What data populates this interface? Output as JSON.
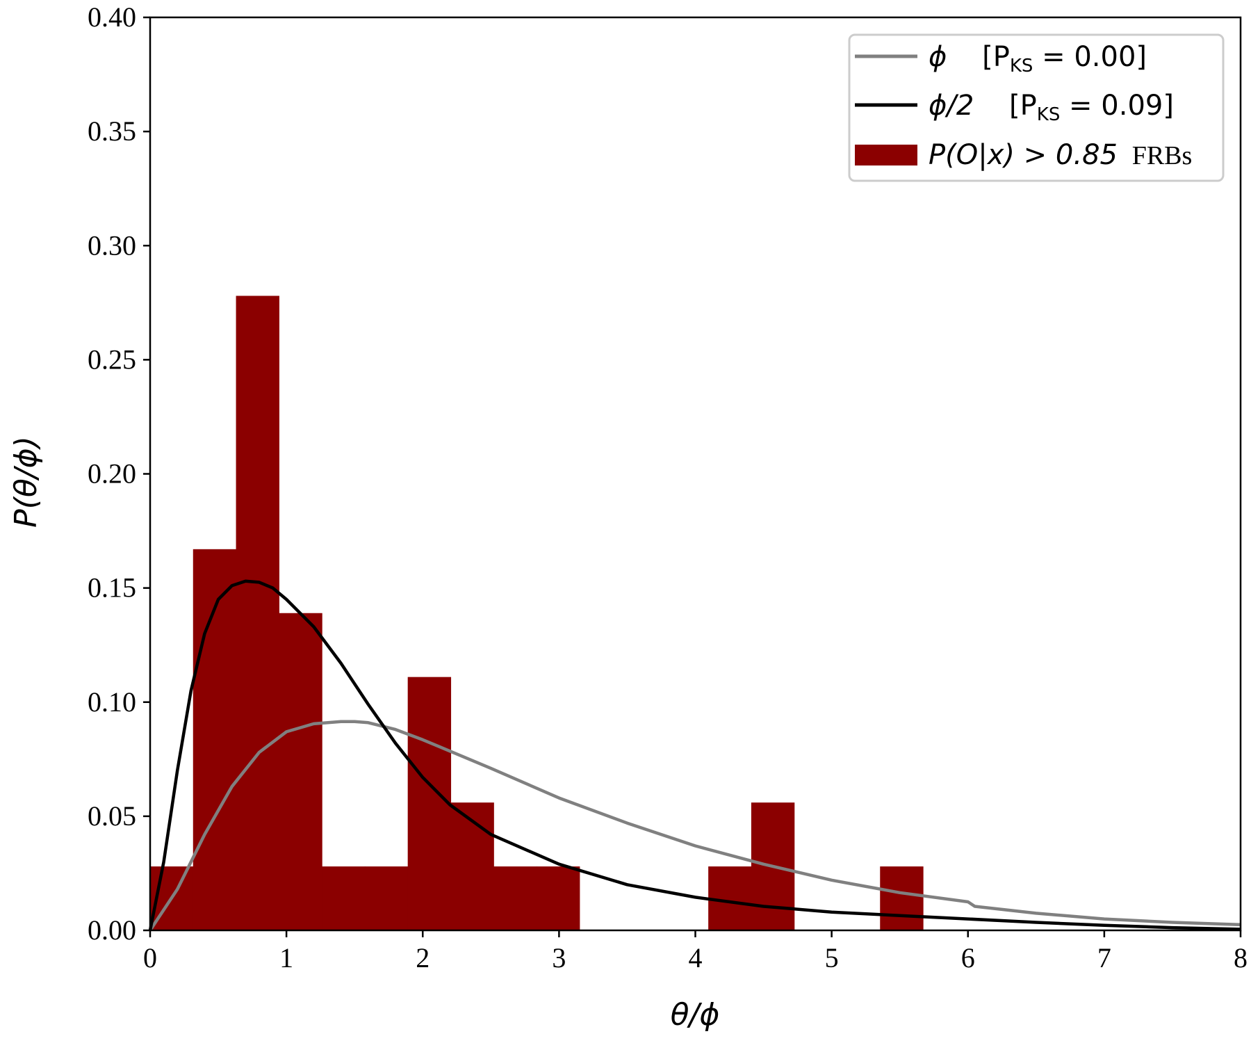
{
  "chart_data": {
    "type": "bar",
    "title": "",
    "xlabel": "θ/ϕ",
    "ylabel": "P(θ/ϕ)",
    "xlim": [
      0,
      8
    ],
    "ylim": [
      0,
      0.4
    ],
    "x_ticks": [
      "0",
      "1",
      "2",
      "3",
      "4",
      "5",
      "6",
      "7",
      "8"
    ],
    "y_ticks": [
      "0.00",
      "0.05",
      "0.10",
      "0.15",
      "0.20",
      "0.25",
      "0.30",
      "0.35",
      "0.40"
    ],
    "grid": false,
    "legend_position": "top-right",
    "legend": [
      {
        "symbol": "ϕ",
        "label": "[P",
        "sub": "KS",
        "value": " = 0.00]",
        "color": "#808080",
        "kind": "line"
      },
      {
        "symbol": "ϕ/2",
        "label": "[P",
        "sub": "KS",
        "value": " = 0.09]",
        "color": "#000000",
        "kind": "line"
      },
      {
        "symbol": "P(O|x) > 0.85",
        "label": "FRBs",
        "color": "#8b0000",
        "kind": "patch"
      }
    ],
    "histogram": {
      "name": "P(O|x) > 0.85 FRBs",
      "color": "#8b0000",
      "bin_edges": [
        0.0,
        0.315,
        0.63,
        0.945,
        1.26,
        1.575,
        1.89,
        2.205,
        2.52,
        2.835,
        3.15,
        3.465,
        3.78,
        4.095,
        4.41,
        4.725,
        5.04,
        5.355,
        5.67
      ],
      "values": [
        0.028,
        0.167,
        0.278,
        0.139,
        0.028,
        0.028,
        0.111,
        0.056,
        0.028,
        0.028,
        0,
        0,
        0,
        0.028,
        0.056,
        0,
        0,
        0.028
      ]
    },
    "series": [
      {
        "name": "ϕ",
        "color": "#808080",
        "x": [
          0,
          0.2,
          0.4,
          0.6,
          0.8,
          1.0,
          1.2,
          1.4,
          1.5,
          1.6,
          1.8,
          2.0,
          2.5,
          3.0,
          3.5,
          4.0,
          4.5,
          5.0,
          5.5,
          6.0,
          6.05,
          6.5,
          7.0,
          7.5,
          8.0
        ],
        "y": [
          0.0,
          0.018,
          0.042,
          0.063,
          0.078,
          0.087,
          0.0905,
          0.0915,
          0.0915,
          0.091,
          0.088,
          0.0835,
          0.071,
          0.058,
          0.047,
          0.037,
          0.029,
          0.022,
          0.0165,
          0.0125,
          0.0105,
          0.0075,
          0.005,
          0.0035,
          0.0025
        ]
      },
      {
        "name": "ϕ/2",
        "color": "#000000",
        "x": [
          0,
          0.1,
          0.2,
          0.3,
          0.4,
          0.5,
          0.6,
          0.7,
          0.8,
          0.9,
          1.0,
          1.2,
          1.4,
          1.6,
          1.8,
          2.0,
          2.2,
          2.5,
          3.0,
          3.5,
          4.0,
          4.5,
          5.0,
          5.5,
          6.0,
          6.5,
          7.0,
          7.5,
          8.0
        ],
        "y": [
          0.0,
          0.03,
          0.07,
          0.105,
          0.13,
          0.145,
          0.151,
          0.153,
          0.1525,
          0.15,
          0.145,
          0.133,
          0.117,
          0.099,
          0.082,
          0.067,
          0.055,
          0.042,
          0.029,
          0.02,
          0.0145,
          0.0105,
          0.008,
          0.0065,
          0.005,
          0.0035,
          0.0022,
          0.0012,
          0.0005
        ]
      }
    ]
  }
}
